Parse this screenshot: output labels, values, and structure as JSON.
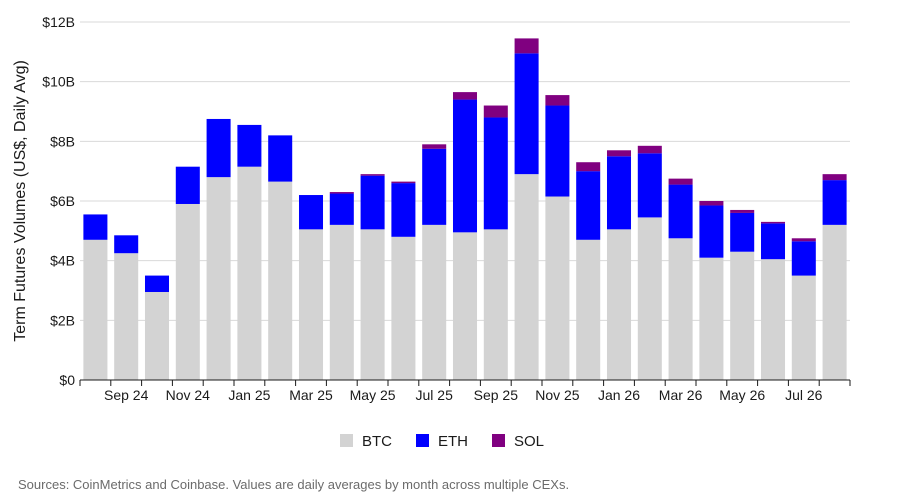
{
  "chart_data": {
    "type": "bar",
    "stacked": true,
    "ylabel": "Term Futures Volumes (US$, Daily Avg)",
    "ylim": [
      0,
      12
    ],
    "yticks": [
      0,
      2,
      4,
      6,
      8,
      10,
      12
    ],
    "ytick_labels": [
      "$0",
      "$2B",
      "$4B",
      "$6B",
      "$8B",
      "$10B",
      "$12B"
    ],
    "x_tick_labels": [
      {
        "index": 1,
        "label": "Sep 24"
      },
      {
        "index": 3,
        "label": "Nov 24"
      },
      {
        "index": 5,
        "label": "Jan 25"
      },
      {
        "index": 7,
        "label": "Mar 25"
      },
      {
        "index": 9,
        "label": "May 25"
      },
      {
        "index": 11,
        "label": "Jul 25"
      },
      {
        "index": 13,
        "label": "Sep 25"
      },
      {
        "index": 15,
        "label": "Nov 25"
      },
      {
        "index": 17,
        "label": "Jan 26"
      },
      {
        "index": 19,
        "label": "Mar 26"
      },
      {
        "index": 21,
        "label": "May 26"
      },
      {
        "index": 23,
        "label": "Jul 26"
      }
    ],
    "categories": [
      "Aug 24",
      "Sep 24",
      "Oct 24",
      "Nov 24",
      "Dec 24",
      "Jan 25",
      "Feb 25",
      "Mar 25",
      "Apr 25",
      "May 25",
      "Jun 25",
      "Jul 25",
      "Aug 25",
      "Sep 25",
      "Oct 25",
      "Nov 25",
      "Dec 25",
      "Jan 26",
      "Feb 26",
      "Mar 26",
      "Apr 26",
      "May 26",
      "Jun 26",
      "Jul 26",
      "Aug 26"
    ],
    "series": [
      {
        "name": "BTC",
        "color": "#d3d3d3",
        "values": [
          4.7,
          4.25,
          2.95,
          5.9,
          6.8,
          7.15,
          6.65,
          5.05,
          5.2,
          5.05,
          4.8,
          5.2,
          4.95,
          5.05,
          6.9,
          6.15,
          4.7,
          5.05,
          5.45,
          4.75,
          4.1,
          4.3,
          4.05,
          3.5,
          5.2
        ]
      },
      {
        "name": "ETH",
        "color": "#0000ff",
        "values": [
          0.85,
          0.6,
          0.55,
          1.25,
          1.95,
          1.4,
          1.55,
          1.15,
          1.05,
          1.8,
          1.8,
          2.55,
          4.45,
          3.75,
          4.05,
          3.05,
          2.3,
          2.45,
          2.15,
          1.8,
          1.75,
          1.3,
          1.2,
          1.15,
          1.5
        ]
      },
      {
        "name": "SOL",
        "color": "#800080",
        "values": [
          0,
          0,
          0,
          0,
          0,
          0,
          0,
          0,
          0.05,
          0.05,
          0.05,
          0.15,
          0.25,
          0.4,
          0.5,
          0.35,
          0.3,
          0.2,
          0.25,
          0.2,
          0.15,
          0.1,
          0.05,
          0.1,
          0.2
        ]
      }
    ],
    "legend": [
      "BTC",
      "ETH",
      "SOL"
    ],
    "legend_placement": "bottom-center",
    "grid": "horizontal",
    "source": "Sources: CoinMetrics and Coinbase. Values are daily averages by month across multiple CEXs."
  }
}
